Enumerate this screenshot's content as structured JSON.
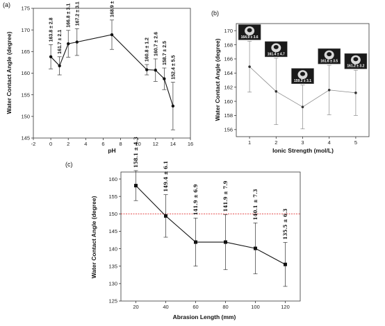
{
  "panels": [
    {
      "label": "(a)"
    },
    {
      "label": "(b)"
    },
    {
      "label": "(c)"
    }
  ],
  "chart_data": [
    {
      "type": "line",
      "xlabel": "pH",
      "ylabel": "Water Contact Angle (degree)",
      "xlim": [
        -2,
        16
      ],
      "ylim": [
        145,
        175
      ],
      "xticks": [
        -2,
        0,
        2,
        4,
        6,
        8,
        10,
        12,
        14,
        16
      ],
      "yticks": [
        145,
        150,
        155,
        160,
        165,
        170,
        175
      ],
      "grid": false,
      "x": [
        0,
        1,
        2,
        3,
        7,
        11,
        12,
        13,
        14
      ],
      "values": [
        163.8,
        161.7,
        166.8,
        167.2,
        168.9,
        160.8,
        160.7,
        158.7,
        152.4
      ],
      "errors": [
        2.8,
        2.1,
        3.1,
        3.1,
        3.4,
        1.2,
        2.6,
        2.5,
        5.5
      ],
      "labels": [
        "163.8 ± 2.8",
        "161.7 ± 2.1",
        "166.8 ± 3.1",
        "167.2 ± 3.1",
        "168.9 ± 3.4",
        "160.8 ± 1.2",
        "160.7 ± 2.6",
        "158.7 ± 2.5",
        "152.4 ± 5.5"
      ],
      "color": "#111111"
    },
    {
      "type": "line",
      "xlabel": "Ionic Strength (mol/L)",
      "ylabel": "Water Contact Angle (degree)",
      "xlim": [
        0.5,
        5.5
      ],
      "ylim": [
        155,
        171
      ],
      "xticks": [
        1,
        2,
        3,
        4,
        5
      ],
      "yticks": [
        156,
        158,
        160,
        162,
        164,
        166,
        168,
        170
      ],
      "grid": false,
      "x": [
        1,
        2,
        3,
        4,
        5
      ],
      "values": [
        164.9,
        161.4,
        159.2,
        161.6,
        161.2
      ],
      "errors": [
        3.6,
        4.7,
        3.1,
        3.5,
        3.2
      ],
      "labels": [
        "164.9 ± 3.6",
        "161.4 ± 4.7",
        "159.2 ± 3.1",
        "161.6 ± 3.5",
        "161.2 ± 3.2"
      ],
      "color": "#8a8a8a"
    },
    {
      "type": "line",
      "xlabel": "Abrasion Length (mm)",
      "ylabel": "Water Contact Angle (degree)",
      "xlim": [
        10,
        130
      ],
      "ylim": [
        125,
        162
      ],
      "xticks": [
        20,
        40,
        60,
        80,
        100,
        120
      ],
      "yticks": [
        125,
        130,
        135,
        140,
        145,
        150,
        155,
        160
      ],
      "grid": false,
      "x": [
        20,
        40,
        60,
        80,
        100,
        120
      ],
      "values": [
        158.1,
        149.4,
        141.9,
        141.9,
        140.1,
        135.5
      ],
      "errors": [
        4.3,
        6.1,
        6.9,
        7.9,
        7.3,
        6.3
      ],
      "labels": [
        "158.1 ± 4.3",
        "149.4 ± 6.1",
        "141.9 ± 6.9",
        "141.9 ± 7.9",
        "140.1 ± 7.3",
        "135.5 ± 6.3"
      ],
      "reference_line": 150,
      "reference_color": "#e03030",
      "color": "#111111"
    }
  ]
}
